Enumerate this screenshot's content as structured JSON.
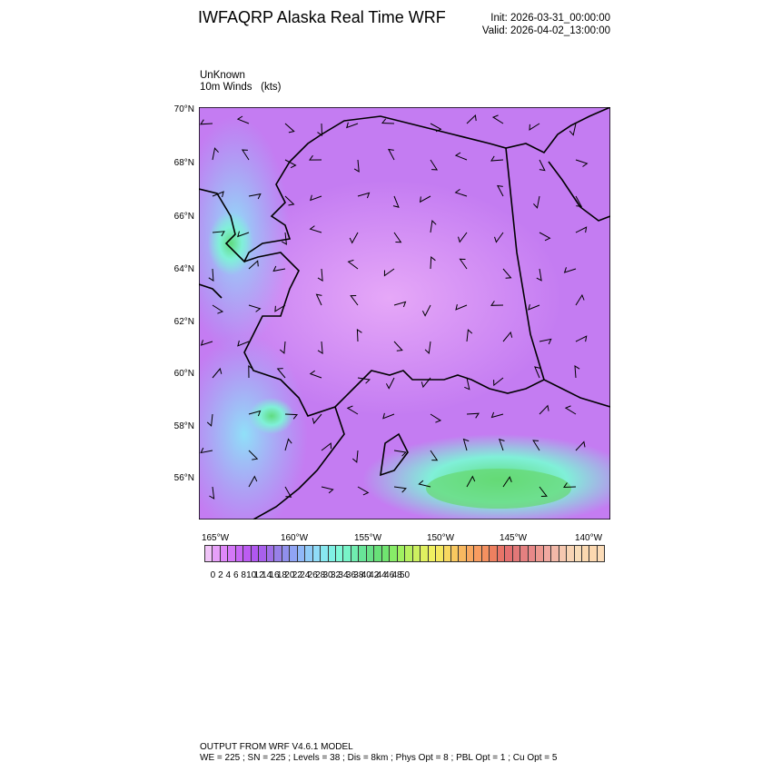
{
  "header": {
    "title": "IWFAQRP Alaska Real Time WRF",
    "init": "Init: 2026-03-31_00:00:00",
    "valid": "Valid: 2026-04-02_13:00:00"
  },
  "subtitle": {
    "line1": "UnKnown",
    "field": "10m Winds",
    "units": "(kts)"
  },
  "map": {
    "lat_labels": [
      "70°N",
      "68°N",
      "66°N",
      "64°N",
      "62°N",
      "60°N",
      "58°N",
      "56°N"
    ],
    "lon_labels": [
      "165°W",
      "160°W",
      "155°W",
      "150°W",
      "145°W",
      "140°W"
    ],
    "background_color": "#c47cf2"
  },
  "colorbar": {
    "labels": [
      "0",
      "2",
      "4",
      "6",
      "8",
      "10",
      "12",
      "14",
      "16",
      "18",
      "20",
      "22",
      "24",
      "26",
      "28",
      "30",
      "32",
      "34",
      "36",
      "38",
      "40",
      "42",
      "44",
      "46",
      "48",
      "50"
    ],
    "colors": [
      "#f0c4f8",
      "#e6a0f8",
      "#de88f8",
      "#d478f8",
      "#c868f6",
      "#bc5cf2",
      "#b058f0",
      "#a860ec",
      "#a070e8",
      "#9880e8",
      "#9090ec",
      "#90a4f4",
      "#90b8f8",
      "#90ccf8",
      "#90dcf8",
      "#88e8f0",
      "#80f0e4",
      "#80f8d8",
      "#78f4c8",
      "#70ecb0",
      "#68e498",
      "#68e088",
      "#68e078",
      "#70e470",
      "#88ec68",
      "#a0f060",
      "#b8f060",
      "#ccf060",
      "#e0f060",
      "#f0f060",
      "#f4e860",
      "#f8d860",
      "#f8c860",
      "#f8b860",
      "#f8a860",
      "#f89c60",
      "#f49060",
      "#ee8060",
      "#e87468",
      "#e47070",
      "#e27878",
      "#e48080",
      "#e88888",
      "#ec9890",
      "#f0a8a0",
      "#f2b8a8",
      "#f6c8b0",
      "#f8d4b4",
      "#f8dcb8",
      "#fad8b0",
      "#fcd8b0",
      "#fcdcb8"
    ]
  },
  "footer": {
    "line1": "OUTPUT FROM WRF V4.6.1 MODEL",
    "line2": "WE = 225 ; SN = 225 ; Levels = 38 ; Dis = 8km ; Phys Opt = 8 ; PBL Opt = 1 ; Cu Opt = 5"
  }
}
